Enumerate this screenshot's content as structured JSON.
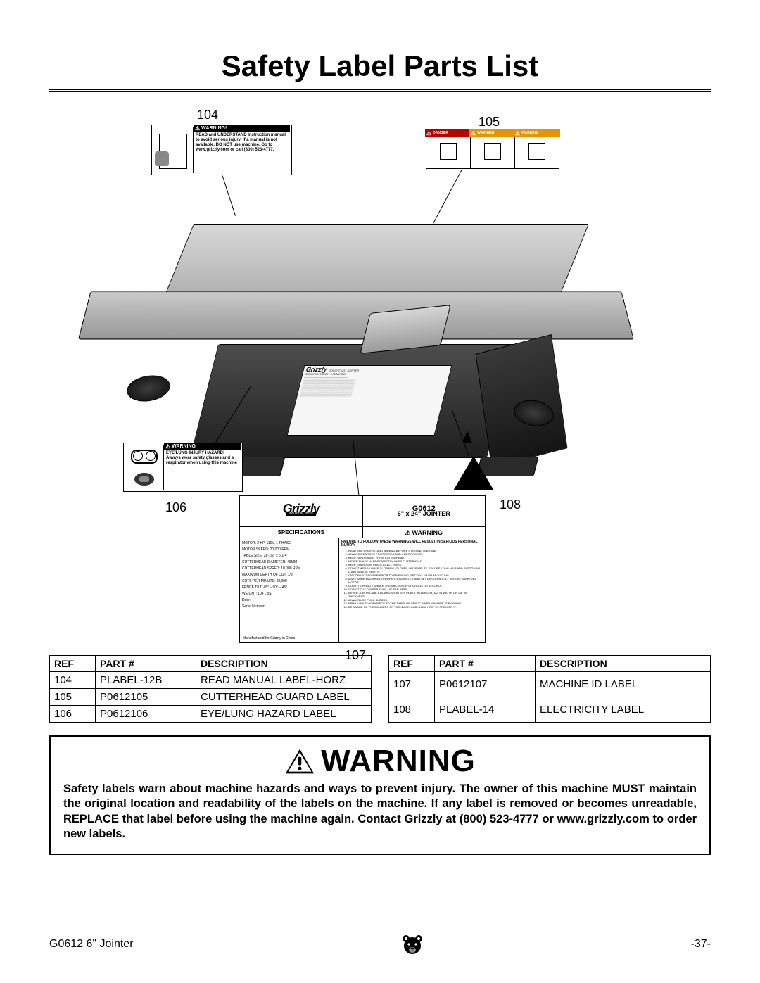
{
  "title": "Safety Label Parts List",
  "callouts": {
    "n104": "104",
    "n105": "105",
    "n106": "106",
    "n107": "107",
    "n108": "108"
  },
  "label104": {
    "header": "WARNING!",
    "text": "READ and UNDERSTAND instruction manual to avoid serious injury. If a manual is not available, DO NOT use machine. Go to www.grizzly.com or call (800) 523-4777."
  },
  "label105": {
    "col1_hdr": "DANGER",
    "col2_hdr": "WARNING",
    "col3_hdr": "WARNING"
  },
  "label106": {
    "header": "WARNING",
    "line1": "EYE/LUNG INJURY HAZARD!",
    "line2": "Always wear safety glasses and a respirator when using this machine"
  },
  "label107": {
    "brand": "Grizzly",
    "brand_sub": "Industrial, Inc.®",
    "model": "G0612",
    "model_sub": "6\" x 24\" JOINTER",
    "spec_hdr": "SPECIFICATIONS",
    "warn_hdr": "WARNING",
    "specs": [
      "MOTOR: 2 HP, 110V, 1-PHASE",
      "MOTOR SPEED: 20,000 RPM",
      "TABLE SIZE: 28-1/2\" x 6-1/4\"",
      "CUTTERHEAD DIAMETER: 48MM",
      "CUTTERHEAD SPEED: 10,000 RPM",
      "MAXIMUM DEPTH OF CUT: 1/8\"",
      "CUTS PER MINUTE: 20,000",
      "FENCE TILT: 45° – 90° – 45°",
      "WEIGHT: 104 LBS.",
      "Date:",
      "Serial Number:"
    ],
    "warn_lead": "FAILURE TO FOLLOW THESE WARNINGS WILL RESULT IN SERIOUS PERSONAL INJURY:",
    "warn_items": [
      "READ AND UNDERSTAND MANUAL BEFORE STARTING MACHINE.",
      "ALWAYS WEAR EYE PROTECTION AND A RESPIRATOR.",
      "KEEP HANDS AWAY FROM CUTTERHEAD.",
      "NEVER PLACE HANDS DIRECTLY OVER CUTTERHEAD.",
      "KEEP GUARDS IN PLACE AT ALL TIMES.",
      "DO NOT WEAR LOOSE CLOTHING, GLOVES, OR JEWELRY. SECURE LONG HAIR AND BUTTON ALL LONG SLEEVE SHIRTS.",
      "DISCONNECT POWER PRIOR TO SERVICING, SETTING UP OR ADJUSTING.",
      "MAKE SURE MACHINE IS PROPERLY ADJUSTED AND SET UP CORRECTLY BEFORE STARTING MOTOR.",
      "DO NOT OPERATE UNDER THE INFLUENCE OF DRUGS OR ALCOHOL.",
      "DO NOT CUT DEEPER THAN 1/8\" PER PASS.",
      "NEVER JOINT/PLANE A BOARD SHORTER THAN 8\" IN LENGTH, 1/2\" IN WIDTH OR 1/4\" IN THICKNESS.",
      "ALWAYS USE PUSH BLOCKS.",
      "FIRMLY HOLD WORKPIECE TO THE TABLE OR FENCE WHEN MACHINE IS RUNNING.",
      "BE AWARE OF THE DANGERS OF \"KICKBACK\" AND KNOW HOW TO PREVENT IT."
    ],
    "mfg": "Manufactured for Grizzly in China"
  },
  "tables": {
    "headers": {
      "ref": "REF",
      "part": "PART #",
      "desc": "DESCRIPTION"
    },
    "left": [
      {
        "ref": "104",
        "part": "PLABEL-12B",
        "desc": "READ MANUAL LABEL-HORZ"
      },
      {
        "ref": "105",
        "part": "P0612105",
        "desc": "CUTTERHEAD GUARD LABEL"
      },
      {
        "ref": "106",
        "part": "P0612106",
        "desc": "EYE/LUNG HAZARD LABEL"
      }
    ],
    "right": [
      {
        "ref": "107",
        "part": "P0612107",
        "desc": "MACHINE ID LABEL"
      },
      {
        "ref": "108",
        "part": "PLABEL-14",
        "desc": "ELECTRICITY LABEL"
      }
    ]
  },
  "warning_box": {
    "title": "WARNING",
    "body": "Safety labels warn about machine hazards and ways to prevent injury. The owner of this machine MUST maintain the original location and readability of the labels on the machine. If any label is removed or becomes unreadable, REPLACE that label before using the machine again. Contact Grizzly at (800) 523-4777 or www.grizzly.com to order new labels."
  },
  "footer": {
    "left": "G0612 6\" Jointer",
    "right": "-37-"
  }
}
